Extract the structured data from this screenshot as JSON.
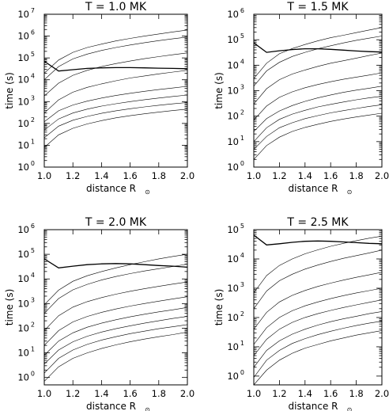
{
  "chart_data": [
    {
      "type": "line",
      "title": "T = 1.0   MK",
      "xlabel": "distance R",
      "xlabel_symbol": "⊙",
      "ylabel": "time (s)",
      "xlim": [
        1.0,
        2.0
      ],
      "ylog": true,
      "ylim_exp": [
        0,
        7
      ],
      "xticks": [
        "1.0",
        "1.2",
        "1.4",
        "1.6",
        "1.8",
        "2.0"
      ],
      "yticks": [
        {
          "base": "10",
          "exp": "0"
        },
        {
          "base": "10",
          "exp": "1"
        },
        {
          "base": "10",
          "exp": "2"
        },
        {
          "base": "10",
          "exp": "3"
        },
        {
          "base": "10",
          "exp": "4"
        },
        {
          "base": "10",
          "exp": "5"
        },
        {
          "base": "10",
          "exp": "6"
        },
        {
          "base": "10",
          "exp": "7"
        }
      ],
      "x": [
        1.0,
        1.1,
        1.2,
        1.3,
        1.4,
        1.5,
        1.6,
        1.7,
        1.8,
        1.9,
        2.0
      ],
      "series": [
        {
          "values": [
            20000,
            80000,
            180000,
            300000,
            430000,
            600000,
            780000,
            1000000,
            1250000,
            1550000,
            1900000
          ]
        },
        {
          "values": [
            10000,
            40000,
            90000,
            150000,
            220000,
            300000,
            390000,
            500000,
            620000,
            760000,
            900000
          ]
        },
        {
          "values": [
            1800,
            7000,
            16000,
            27000,
            40000,
            55000,
            72000,
            92000,
            115000,
            140000,
            170000
          ]
        },
        {
          "values": [
            300,
            1200,
            2700,
            4500,
            6500,
            9000,
            12000,
            15000,
            18500,
            22500,
            27000
          ]
        },
        {
          "values": [
            120,
            380,
            700,
            1050,
            1450,
            1900,
            2400,
            2950,
            3550,
            4200,
            5000
          ]
        },
        {
          "values": [
            50,
            160,
            300,
            450,
            620,
            800,
            1000,
            1220,
            1460,
            1720,
            2000
          ]
        },
        {
          "values": [
            22,
            75,
            140,
            210,
            290,
            380,
            470,
            570,
            680,
            790,
            900
          ]
        },
        {
          "values": [
            8,
            30,
            60,
            95,
            135,
            180,
            225,
            275,
            330,
            390,
            450
          ]
        },
        {
          "values": [
            70000,
            25000,
            29000,
            33000,
            35000,
            36000,
            36000,
            35000,
            34000,
            33000,
            32000
          ],
          "bold": true
        }
      ]
    },
    {
      "type": "line",
      "title": "T = 1.5   MK",
      "xlabel": "distance R",
      "xlabel_symbol": "⊙",
      "ylabel": "time (s)",
      "xlim": [
        1.0,
        2.0
      ],
      "ylog": true,
      "ylim_exp": [
        0,
        6
      ],
      "xticks": [
        "1.0",
        "1.2",
        "1.4",
        "1.6",
        "1.8",
        "2.0"
      ],
      "yticks": [
        {
          "base": "10",
          "exp": "0"
        },
        {
          "base": "10",
          "exp": "1"
        },
        {
          "base": "10",
          "exp": "2"
        },
        {
          "base": "10",
          "exp": "3"
        },
        {
          "base": "10",
          "exp": "4"
        },
        {
          "base": "10",
          "exp": "5"
        },
        {
          "base": "10",
          "exp": "6"
        }
      ],
      "x": [
        1.0,
        1.1,
        1.2,
        1.3,
        1.4,
        1.5,
        1.6,
        1.7,
        1.8,
        1.9,
        2.0
      ],
      "series": [
        {
          "values": [
            3000,
            12000,
            28000,
            45000,
            65000,
            90000,
            120000,
            150000,
            190000,
            240000,
            300000
          ]
        },
        {
          "values": [
            1500,
            6000,
            13000,
            22000,
            32000,
            44000,
            58000,
            75000,
            95000,
            115000,
            140000
          ]
        },
        {
          "values": [
            300,
            1200,
            2700,
            4500,
            6500,
            9000,
            12000,
            15000,
            19000,
            24000,
            30000
          ]
        },
        {
          "values": [
            70,
            250,
            550,
            900,
            1300,
            1750,
            2250,
            2800,
            3400,
            4100,
            5000
          ]
        },
        {
          "values": [
            25,
            80,
            160,
            260,
            380,
            520,
            680,
            860,
            1050,
            1250,
            1500
          ]
        },
        {
          "values": [
            10,
            35,
            75,
            120,
            170,
            230,
            290,
            360,
            440,
            520,
            600
          ]
        },
        {
          "values": [
            5,
            16,
            35,
            55,
            80,
            105,
            135,
            165,
            200,
            240,
            280
          ]
        },
        {
          "values": [
            2,
            7,
            15,
            25,
            36,
            48,
            62,
            77,
            93,
            110,
            130
          ]
        },
        {
          "values": [
            75000,
            32000,
            37000,
            41000,
            44000,
            44000,
            42000,
            39000,
            36000,
            34000,
            33000
          ],
          "bold": true
        }
      ]
    },
    {
      "type": "line",
      "title": "T = 2.0   MK",
      "xlabel": "distance R",
      "xlabel_symbol": "⊙",
      "ylabel": "time (s)",
      "xlim": [
        1.0,
        2.0
      ],
      "ylog": true,
      "ylim_exp": [
        -0.3,
        6
      ],
      "xticks": [
        "1.0",
        "1.2",
        "1.4",
        "1.6",
        "1.8",
        "2.0"
      ],
      "yticks": [
        {
          "base": "10",
          "exp": "0"
        },
        {
          "base": "10",
          "exp": "1"
        },
        {
          "base": "10",
          "exp": "2"
        },
        {
          "base": "10",
          "exp": "3"
        },
        {
          "base": "10",
          "exp": "4"
        },
        {
          "base": "10",
          "exp": "5"
        },
        {
          "base": "10",
          "exp": "6"
        }
      ],
      "x": [
        1.0,
        1.1,
        1.2,
        1.3,
        1.4,
        1.5,
        1.6,
        1.7,
        1.8,
        1.9,
        2.0
      ],
      "series": [
        {
          "values": [
            900,
            3500,
            8000,
            13500,
            20000,
            28000,
            38000,
            50000,
            65000,
            82000,
            100000
          ]
        },
        {
          "values": [
            400,
            1600,
            3600,
            6000,
            9000,
            12500,
            16500,
            21000,
            26000,
            32000,
            40000
          ]
        },
        {
          "values": [
            80,
            320,
            720,
            1200,
            1750,
            2400,
            3150,
            4000,
            5000,
            6200,
            7500
          ]
        },
        {
          "values": [
            20,
            80,
            180,
            300,
            440,
            600,
            790,
            1000,
            1250,
            1550,
            1900
          ]
        },
        {
          "values": [
            8,
            30,
            65,
            110,
            160,
            220,
            290,
            370,
            460,
            560,
            700
          ]
        },
        {
          "values": [
            3.5,
            13,
            28,
            47,
            70,
            95,
            125,
            160,
            200,
            250,
            300
          ]
        },
        {
          "values": [
            1.5,
            6,
            13,
            22,
            33,
            45,
            60,
            76,
            95,
            115,
            140
          ]
        },
        {
          "values": [
            0.7,
            2.7,
            6,
            10,
            15,
            21,
            28,
            36,
            45,
            55,
            70
          ]
        },
        {
          "values": [
            65000,
            28000,
            33000,
            38000,
            41000,
            42000,
            41000,
            38000,
            35000,
            33000,
            30000
          ],
          "bold": true
        }
      ]
    },
    {
      "type": "line",
      "title": "T = 2.5   MK",
      "xlabel": "distance R",
      "xlabel_symbol": "⊙",
      "ylabel": "time (s)",
      "xlim": [
        1.0,
        2.0
      ],
      "ylog": true,
      "ylim_exp": [
        -0.3,
        5
      ],
      "xticks": [
        "1.0",
        "1.2",
        "1.4",
        "1.6",
        "1.8",
        "2.0"
      ],
      "yticks": [
        {
          "base": "10",
          "exp": "0"
        },
        {
          "base": "10",
          "exp": "1"
        },
        {
          "base": "10",
          "exp": "2"
        },
        {
          "base": "10",
          "exp": "3"
        },
        {
          "base": "10",
          "exp": "4"
        },
        {
          "base": "10",
          "exp": "5"
        }
      ],
      "x": [
        1.0,
        1.1,
        1.2,
        1.3,
        1.4,
        1.5,
        1.6,
        1.7,
        1.8,
        1.9,
        2.0
      ],
      "series": [
        {
          "values": [
            700,
            2700,
            6000,
            10000,
            15000,
            20500,
            27000,
            34000,
            42000,
            51000,
            60000
          ]
        },
        {
          "values": [
            200,
            800,
            1800,
            3000,
            4500,
            6200,
            8200,
            10500,
            13000,
            16000,
            20000
          ]
        },
        {
          "values": [
            40,
            150,
            340,
            570,
            840,
            1150,
            1500,
            1900,
            2350,
            2850,
            3500
          ]
        },
        {
          "values": [
            12,
            45,
            100,
            170,
            250,
            340,
            440,
            560,
            690,
            830,
            1000
          ]
        },
        {
          "values": [
            5,
            18,
            40,
            68,
            100,
            135,
            175,
            220,
            270,
            330,
            400
          ]
        },
        {
          "values": [
            2,
            7.5,
            16,
            27,
            40,
            55,
            72,
            90,
            110,
            135,
            160
          ]
        },
        {
          "values": [
            0.9,
            3.5,
            7.5,
            13,
            19,
            26,
            34,
            43,
            53,
            64,
            75
          ]
        },
        {
          "values": [
            0.5,
            1.6,
            3.5,
            6,
            9,
            12,
            16,
            20,
            25,
            30,
            36
          ]
        },
        {
          "values": [
            65000,
            30000,
            33000,
            37000,
            40000,
            41000,
            40000,
            38000,
            36000,
            34000,
            33000
          ],
          "bold": true
        }
      ]
    }
  ]
}
